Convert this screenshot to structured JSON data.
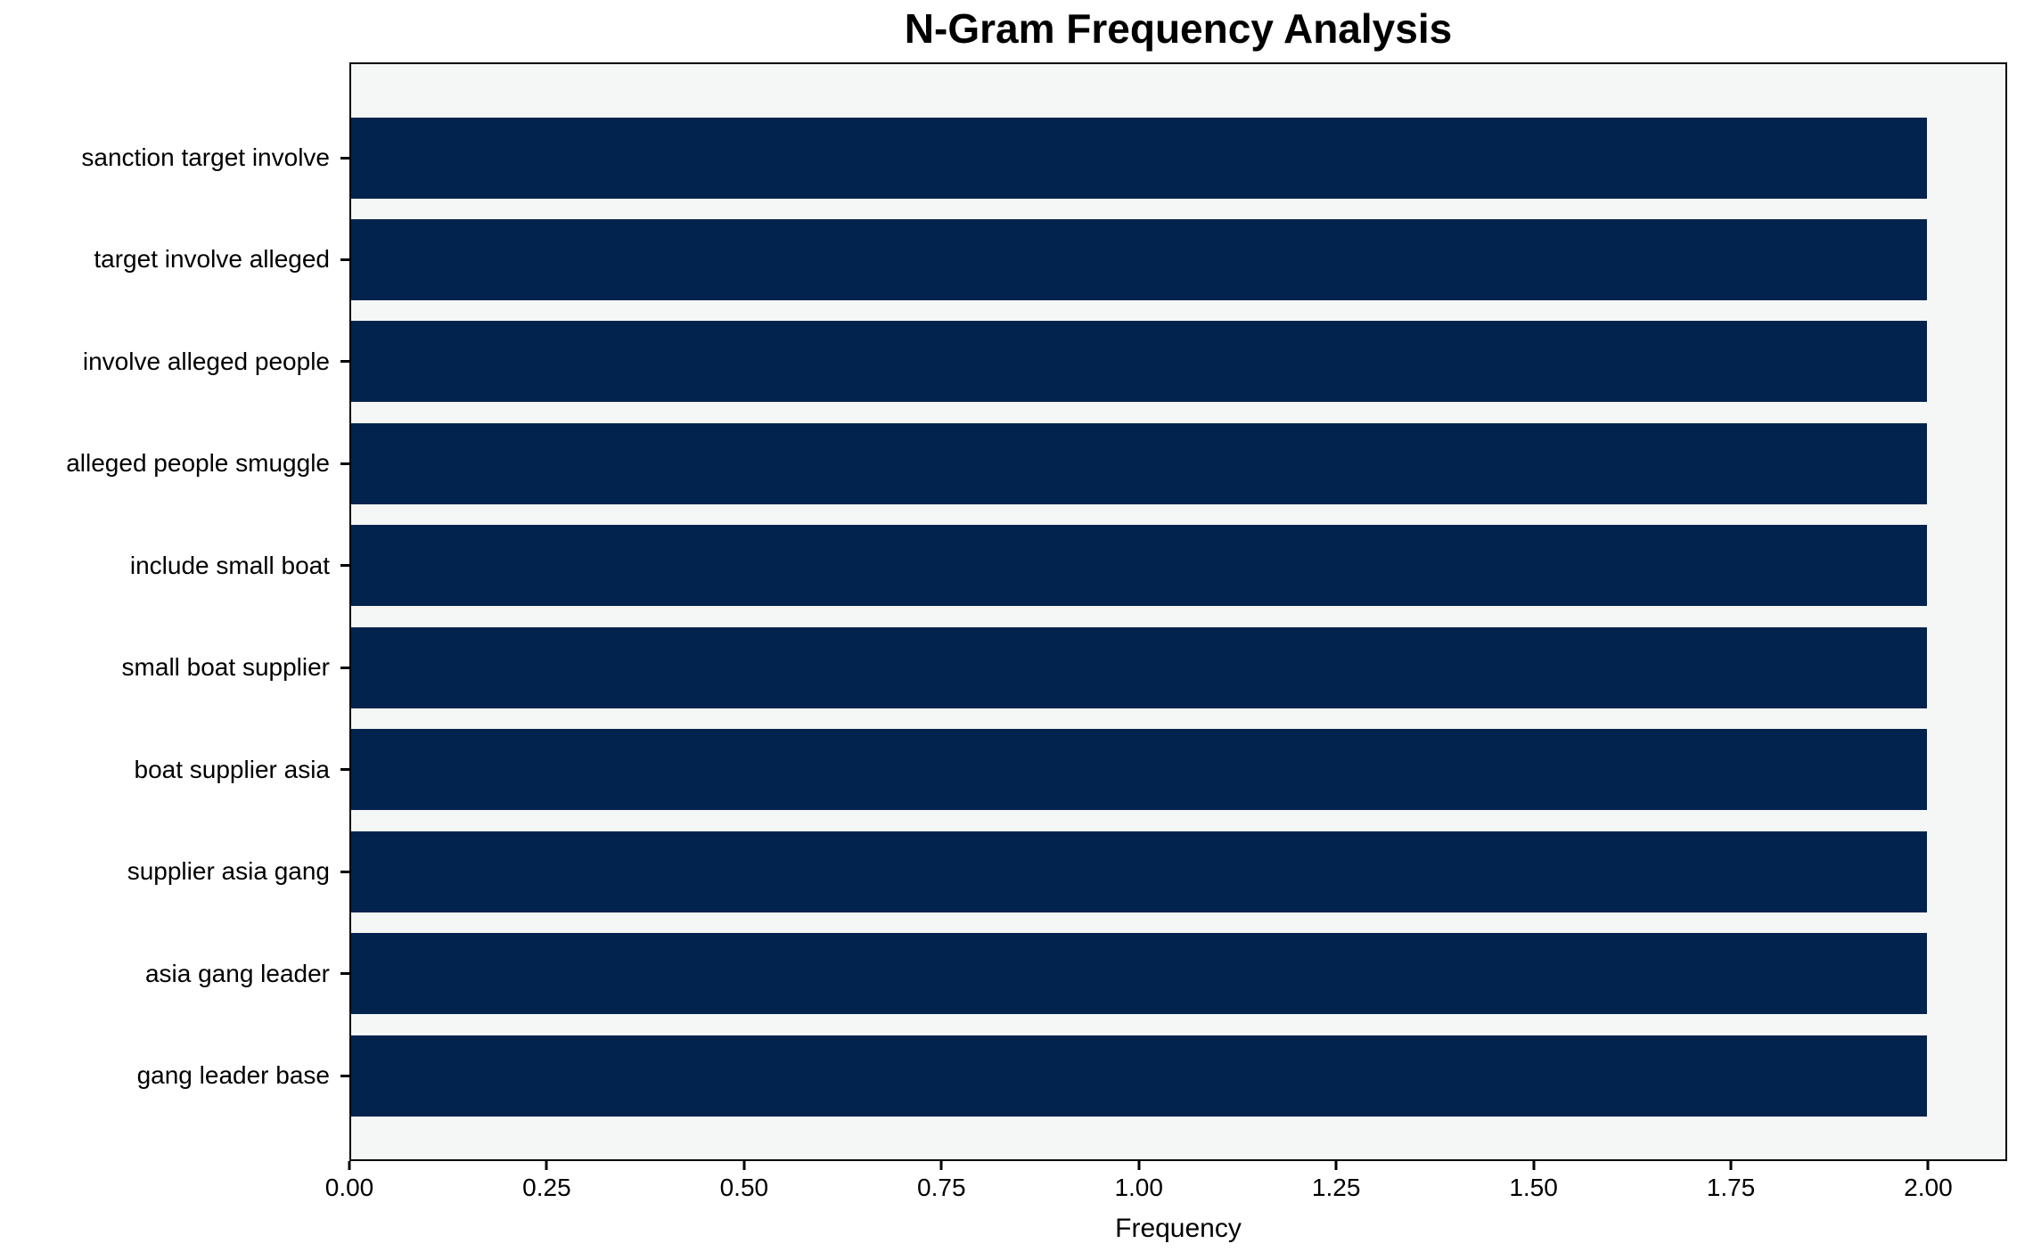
{
  "chart_data": {
    "type": "bar",
    "orientation": "horizontal",
    "title": "N-Gram Frequency Analysis",
    "xlabel": "Frequency",
    "ylabel": "",
    "categories": [
      "sanction target involve",
      "target involve alleged",
      "involve alleged people",
      "alleged people smuggle",
      "include small boat",
      "small boat supplier",
      "boat supplier asia",
      "supplier asia gang",
      "asia gang leader",
      "gang leader base"
    ],
    "values": [
      2,
      2,
      2,
      2,
      2,
      2,
      2,
      2,
      2,
      2
    ],
    "x_tick_labels": [
      "0.00",
      "0.25",
      "0.50",
      "0.75",
      "1.00",
      "1.25",
      "1.50",
      "1.75",
      "2.00"
    ],
    "x_tick_values": [
      0.0,
      0.25,
      0.5,
      0.75,
      1.0,
      1.25,
      1.5,
      1.75,
      2.0
    ],
    "xlim": [
      0,
      2.1
    ],
    "grid": false,
    "legend": null,
    "colors": {
      "bar": "#02234d",
      "plot_background": "#f5f6f6",
      "figure_background": "#ffffff",
      "spine": "#000000",
      "text": "#000000"
    }
  }
}
